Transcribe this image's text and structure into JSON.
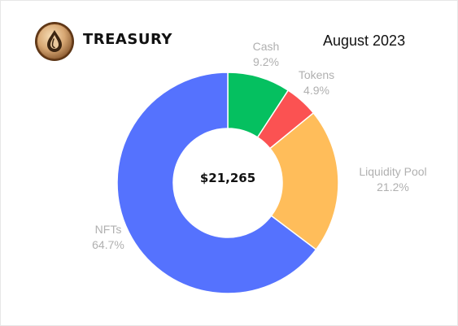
{
  "header": {
    "brand": "TREASURY",
    "period": "August 2023",
    "logo_icon": "oil-drop-coin-icon"
  },
  "chart_data": {
    "type": "pie",
    "variant": "donut",
    "center_label": "$21,265",
    "start_angle": "12 o'clock",
    "direction": "clockwise",
    "slices": [
      {
        "name": "Cash",
        "value": 9.2,
        "label": "9.2%",
        "color": "#05c060"
      },
      {
        "name": "Tokens",
        "value": 4.9,
        "label": "4.9%",
        "color": "#fb5252"
      },
      {
        "name": "Liquidity Pool",
        "value": 21.2,
        "label": "21.2%",
        "color": "#ffbd5a"
      },
      {
        "name": "NFTs",
        "value": 64.7,
        "label": "64.7%",
        "color": "#5572fe"
      }
    ]
  }
}
